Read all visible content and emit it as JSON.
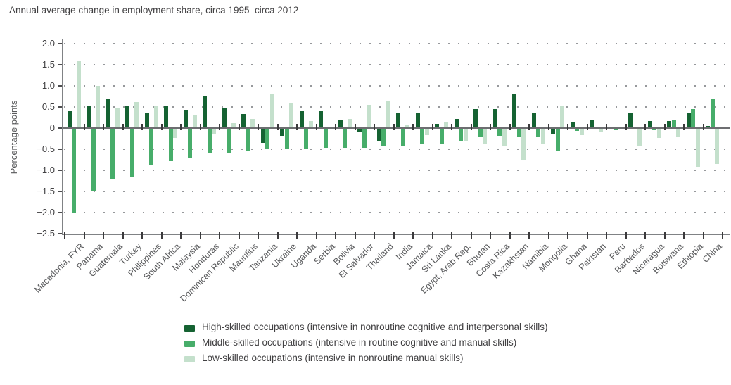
{
  "title": "Annual average change in employment share, circa 1995–circa 2012",
  "y_axis": {
    "label": "Percentage points",
    "tick_labels": [
      "2.0",
      "1.5",
      "1.0",
      "0.5",
      "0",
      "−0.5",
      "−1.0",
      "−1.5",
      "−2.0",
      "−2.5"
    ],
    "tick_values": [
      2,
      1.5,
      1,
      0.5,
      0,
      -0.5,
      -1,
      -1.5,
      -2,
      -2.5
    ]
  },
  "legend": [
    {
      "id": "high",
      "label": "High-skilled occupations (intensive in nonroutine cognitive and interpersonal skills)",
      "color": "#156232"
    },
    {
      "id": "middle",
      "label": "Middle-skilled occupations (intensive in routine cognitive and manual skills)",
      "color": "#47ad6a"
    },
    {
      "id": "low",
      "label": "Low-skilled occupations (intensive in nonroutine manual skills)",
      "color": "#c4e0cc"
    }
  ],
  "chart_data": {
    "type": "bar",
    "title": "Annual average change in employment share, circa 1995–circa 2012",
    "xlabel": "",
    "ylabel": "Percentage points",
    "ylim": [
      -2.5,
      2.0
    ],
    "grid": "dotted horizontal lines every 0.5, solid line at 0",
    "legend_position": "bottom",
    "categories": [
      "Macedonia, FYR",
      "Panama",
      "Guatemala",
      "Turkey",
      "Philippines",
      "South Africa",
      "Malaysia",
      "Honduras",
      "Dominican Republic",
      "Mauritius",
      "Tanzania",
      "Ukraine",
      "Uganda",
      "Serbia",
      "Bolivia",
      "El Salvador",
      "Thailand",
      "India",
      "Jamaica",
      "Sri Lanka",
      "Egypt, Arab Rep.",
      "Bhutan",
      "Costa Rica",
      "Kazakhstan",
      "Namibia",
      "Mongolia",
      "Ghana",
      "Pakistan",
      "Peru",
      "Barbados",
      "Nicaragua",
      "Botswana",
      "Ethiopia",
      "China"
    ],
    "series": [
      {
        "name": "High-skilled occupations (intensive in nonroutine cognitive and interpersonal skills)",
        "key": "high",
        "color": "#156232",
        "values": [
          0.42,
          0.52,
          0.7,
          0.52,
          0.37,
          0.54,
          0.43,
          0.76,
          0.47,
          0.34,
          -0.35,
          -0.18,
          0.4,
          0.42,
          0.19,
          -0.1,
          -0.3,
          0.35,
          0.36,
          0.1,
          0.21,
          0.45,
          0.45,
          0.8,
          0.37,
          -0.15,
          0.14,
          0.19,
          0.02,
          0.37,
          0.16,
          0.17,
          0.37,
          0.05
        ]
      },
      {
        "name": "Middle-skilled occupations (intensive in routine cognitive and manual skills)",
        "key": "middle",
        "color": "#47ad6a",
        "values": [
          -2.0,
          -1.5,
          -1.2,
          -1.16,
          -0.88,
          -0.78,
          -0.72,
          -0.61,
          -0.58,
          -0.54,
          -0.5,
          -0.5,
          -0.5,
          -0.47,
          -0.47,
          -0.46,
          -0.42,
          -0.42,
          -0.36,
          -0.36,
          -0.3,
          -0.2,
          -0.18,
          -0.2,
          -0.2,
          -0.54,
          -0.07,
          -0.02,
          -0.04,
          -0.02,
          -0.05,
          0.18,
          0.45,
          0.7
        ]
      },
      {
        "name": "Low-skilled occupations (intensive in nonroutine manual skills)",
        "key": "low",
        "color": "#c4e0cc",
        "values": [
          1.6,
          1.0,
          0.47,
          0.62,
          0.52,
          -0.24,
          0.32,
          -0.15,
          0.12,
          0.21,
          0.8,
          0.6,
          0.16,
          0.0,
          0.22,
          0.55,
          0.65,
          0.09,
          -0.17,
          0.15,
          -0.32,
          -0.38,
          -0.41,
          -0.75,
          -0.36,
          0.53,
          -0.16,
          -0.1,
          0.02,
          -0.44,
          -0.24,
          -0.22,
          -0.92,
          -0.85
        ]
      }
    ]
  }
}
